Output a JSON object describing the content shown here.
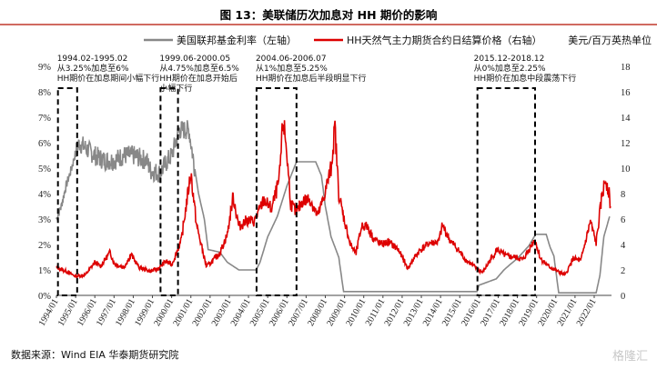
{
  "title": "图 13：美联储历次加息对 HH 期价的影响",
  "source": "数据来源：Wind EIA 华泰期货研究院",
  "watermark": "格隆汇",
  "chart_data": {
    "type": "line",
    "legend": {
      "placement": "top",
      "entries": [
        "美国联邦基金利率（左轴）",
        "HH天然气主力期货合约日结算价格（右轴）"
      ]
    },
    "right_unit": "美元/百万英热单位",
    "left_axis": {
      "ylim": [
        0,
        9
      ],
      "ticks": [
        "0%",
        "1%",
        "2%",
        "3%",
        "4%",
        "5%",
        "6%",
        "7%",
        "8%",
        "9%"
      ]
    },
    "right_axis": {
      "ylim": [
        0,
        18
      ],
      "ticks": [
        "0",
        "2",
        "4",
        "6",
        "8",
        "10",
        "12",
        "14",
        "16",
        "18"
      ]
    },
    "x_ticks": [
      "1994/01",
      "1995/01",
      "1996/01",
      "1997/01",
      "1998/01",
      "1999/01",
      "2000/01",
      "2001/01",
      "2002/01",
      "2003/01",
      "2004/01",
      "2005/01",
      "2006/01",
      "2007/01",
      "2008/01",
      "2009/01",
      "2010/01",
      "2011/01",
      "2012/01",
      "2013/01",
      "2014/01",
      "2015/01",
      "2016/01",
      "2017/01",
      "2018/01",
      "2019/01",
      "2020/01",
      "2021/01",
      "2022/01"
    ],
    "xlim": [
      1994.0,
      2022.9
    ],
    "series": [
      {
        "name": "美国联邦基金利率（左轴）",
        "color": "#888888",
        "axis": "left",
        "points": [
          [
            1994.0,
            3.0
          ],
          [
            1994.25,
            3.5
          ],
          [
            1994.5,
            4.3
          ],
          [
            1994.75,
            4.9
          ],
          [
            1995.0,
            5.6
          ],
          [
            1995.2,
            6.0
          ],
          [
            1995.5,
            5.8
          ],
          [
            1996.0,
            5.5
          ],
          [
            1996.5,
            5.3
          ],
          [
            1997.0,
            5.3
          ],
          [
            1997.5,
            5.5
          ],
          [
            1998.0,
            5.5
          ],
          [
            1998.7,
            5.3
          ],
          [
            1998.9,
            4.9
          ],
          [
            1999.4,
            4.8
          ],
          [
            1999.7,
            5.2
          ],
          [
            2000.0,
            5.5
          ],
          [
            2000.4,
            6.5
          ],
          [
            2000.9,
            6.5
          ],
          [
            2001.1,
            5.5
          ],
          [
            2001.4,
            4.0
          ],
          [
            2001.7,
            3.0
          ],
          [
            2001.9,
            1.8
          ],
          [
            2002.5,
            1.7
          ],
          [
            2002.9,
            1.3
          ],
          [
            2003.5,
            1.0
          ],
          [
            2004.4,
            1.0
          ],
          [
            2004.6,
            1.3
          ],
          [
            2005.0,
            2.3
          ],
          [
            2005.5,
            3.1
          ],
          [
            2006.0,
            4.3
          ],
          [
            2006.5,
            5.25
          ],
          [
            2007.5,
            5.25
          ],
          [
            2007.8,
            4.7
          ],
          [
            2008.0,
            3.5
          ],
          [
            2008.3,
            2.3
          ],
          [
            2008.7,
            1.5
          ],
          [
            2008.95,
            0.15
          ],
          [
            2015.9,
            0.15
          ],
          [
            2016.0,
            0.4
          ],
          [
            2016.9,
            0.65
          ],
          [
            2017.3,
            1.0
          ],
          [
            2017.6,
            1.2
          ],
          [
            2018.0,
            1.45
          ],
          [
            2018.3,
            1.7
          ],
          [
            2018.6,
            1.95
          ],
          [
            2018.95,
            2.4
          ],
          [
            2019.5,
            2.4
          ],
          [
            2019.7,
            1.9
          ],
          [
            2019.9,
            1.55
          ],
          [
            2020.15,
            0.1
          ],
          [
            2022.1,
            0.1
          ],
          [
            2022.3,
            0.8
          ],
          [
            2022.5,
            2.3
          ],
          [
            2022.8,
            3.1
          ]
        ]
      },
      {
        "name": "HH天然气主力期货合约日结算价格（右轴）",
        "color": "#dd0000",
        "axis": "right",
        "points": [
          [
            1994.0,
            2.2
          ],
          [
            1994.5,
            1.9
          ],
          [
            1995.0,
            1.5
          ],
          [
            1995.5,
            1.6
          ],
          [
            1996.0,
            2.6
          ],
          [
            1996.3,
            2.3
          ],
          [
            1996.8,
            3.4
          ],
          [
            1997.0,
            2.5
          ],
          [
            1997.5,
            2.2
          ],
          [
            1997.9,
            3.2
          ],
          [
            1998.3,
            2.2
          ],
          [
            1998.9,
            1.9
          ],
          [
            1999.3,
            2.1
          ],
          [
            1999.7,
            2.7
          ],
          [
            2000.0,
            2.4
          ],
          [
            2000.5,
            4.3
          ],
          [
            2000.9,
            8.6
          ],
          [
            2001.0,
            9.6
          ],
          [
            2001.3,
            5.5
          ],
          [
            2001.8,
            2.3
          ],
          [
            2002.0,
            2.5
          ],
          [
            2002.5,
            3.3
          ],
          [
            2002.9,
            4.8
          ],
          [
            2003.2,
            7.8
          ],
          [
            2003.5,
            5.4
          ],
          [
            2003.9,
            5.9
          ],
          [
            2004.3,
            5.8
          ],
          [
            2004.8,
            7.5
          ],
          [
            2005.2,
            6.8
          ],
          [
            2005.6,
            9.0
          ],
          [
            2005.8,
            13.8
          ],
          [
            2005.95,
            12.0
          ],
          [
            2006.2,
            7.2
          ],
          [
            2006.5,
            6.5
          ],
          [
            2006.8,
            7.4
          ],
          [
            2007.2,
            7.6
          ],
          [
            2007.6,
            6.2
          ],
          [
            2007.9,
            7.6
          ],
          [
            2008.3,
            10.0
          ],
          [
            2008.5,
            13.2
          ],
          [
            2008.7,
            8.0
          ],
          [
            2008.9,
            6.5
          ],
          [
            2009.3,
            4.0
          ],
          [
            2009.6,
            3.3
          ],
          [
            2009.9,
            5.5
          ],
          [
            2010.2,
            5.4
          ],
          [
            2010.5,
            4.5
          ],
          [
            2010.9,
            4.0
          ],
          [
            2011.3,
            4.2
          ],
          [
            2011.8,
            3.6
          ],
          [
            2012.3,
            2.1
          ],
          [
            2012.6,
            2.9
          ],
          [
            2012.9,
            3.5
          ],
          [
            2013.4,
            4.1
          ],
          [
            2013.9,
            4.2
          ],
          [
            2014.1,
            5.5
          ],
          [
            2014.5,
            4.3
          ],
          [
            2014.9,
            3.6
          ],
          [
            2015.3,
            2.8
          ],
          [
            2015.9,
            2.1
          ],
          [
            2016.2,
            1.8
          ],
          [
            2016.6,
            2.8
          ],
          [
            2016.95,
            3.6
          ],
          [
            2017.4,
            3.1
          ],
          [
            2017.9,
            3.0
          ],
          [
            2018.3,
            2.8
          ],
          [
            2018.9,
            4.4
          ],
          [
            2019.2,
            2.9
          ],
          [
            2019.6,
            2.3
          ],
          [
            2020.2,
            1.8
          ],
          [
            2020.5,
            1.6
          ],
          [
            2020.9,
            2.9
          ],
          [
            2021.3,
            2.7
          ],
          [
            2021.8,
            5.8
          ],
          [
            2022.1,
            4.1
          ],
          [
            2022.4,
            7.8
          ],
          [
            2022.6,
            9.2
          ],
          [
            2022.75,
            8.2
          ],
          [
            2022.85,
            7.0
          ]
        ]
      }
    ],
    "annotations": [
      {
        "lines": [
          "1994.02-1995.02",
          "从3.25%加息至6%",
          "HH期价在加息期间小幅下行"
        ],
        "x0": 1994.08,
        "x1": 1995.08
      },
      {
        "lines": [
          "1999.06-2000.05",
          "从4.75%加息至6.5%",
          "HH期价在加息开始后",
          "小幅下行"
        ],
        "x0": 1999.42,
        "x1": 2000.33
      },
      {
        "lines": [
          "2004.06-2006.07",
          "从1%加息至5.25%",
          "HH期价在加息后半段明显下行"
        ],
        "x0": 2004.42,
        "x1": 2006.5
      },
      {
        "lines": [
          "2015.12-2018.12",
          "从0%加息至2.25%",
          "HH期价在加息中段震荡下行"
        ],
        "x0": 2015.92,
        "x1": 2018.92
      }
    ]
  }
}
